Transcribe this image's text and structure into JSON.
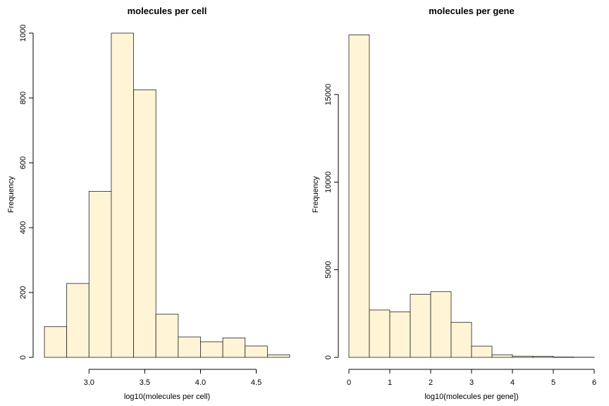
{
  "colors": {
    "bar_fill": "#fff5d6",
    "bar_stroke": "#222222"
  },
  "chart_data": [
    {
      "type": "bar",
      "title": "molecules per cell",
      "xlabel": "log10(molecules per cell)",
      "ylabel": "Frequency",
      "xlim": [
        2.6,
        4.8
      ],
      "ylim": [
        0,
        1000
      ],
      "xticks": [
        3.0,
        3.5,
        4.0,
        4.5
      ],
      "xtick_labels": [
        "3.0",
        "3.5",
        "4.0",
        "4.5"
      ],
      "yticks": [
        0,
        200,
        400,
        600,
        800,
        1000
      ],
      "ytick_labels": [
        "0",
        "200",
        "400",
        "600",
        "800",
        "1000"
      ],
      "bins": [
        [
          2.6,
          2.8
        ],
        [
          2.8,
          3.0
        ],
        [
          3.0,
          3.2
        ],
        [
          3.2,
          3.4
        ],
        [
          3.4,
          3.6
        ],
        [
          3.6,
          3.8
        ],
        [
          3.8,
          4.0
        ],
        [
          4.0,
          4.2
        ],
        [
          4.2,
          4.4
        ],
        [
          4.4,
          4.6
        ],
        [
          4.6,
          4.8
        ]
      ],
      "values": [
        95,
        228,
        512,
        1000,
        825,
        133,
        63,
        48,
        60,
        35,
        8
      ]
    },
    {
      "type": "bar",
      "title": "molecules per gene",
      "xlabel": "log10(molecules per gene])",
      "ylabel": "Frequency",
      "xlim": [
        0,
        6
      ],
      "ylim": [
        0,
        18500
      ],
      "xticks": [
        0,
        1,
        2,
        3,
        4,
        5,
        6
      ],
      "xtick_labels": [
        "0",
        "1",
        "2",
        "3",
        "4",
        "5",
        "6"
      ],
      "yticks": [
        0,
        5000,
        10000,
        15000
      ],
      "ytick_labels": [
        "0",
        "5000",
        "10000",
        "15000"
      ],
      "bins": [
        [
          0,
          0.5
        ],
        [
          0.5,
          1.0
        ],
        [
          1.0,
          1.5
        ],
        [
          1.5,
          2.0
        ],
        [
          2.0,
          2.5
        ],
        [
          2.5,
          3.0
        ],
        [
          3.0,
          3.5
        ],
        [
          3.5,
          4.0
        ],
        [
          4.0,
          4.5
        ],
        [
          4.5,
          5.0
        ],
        [
          5.0,
          5.5
        ],
        [
          5.5,
          6.0
        ]
      ],
      "values": [
        18400,
        2700,
        2600,
        3600,
        3750,
        2000,
        640,
        150,
        70,
        60,
        20,
        10
      ]
    }
  ]
}
